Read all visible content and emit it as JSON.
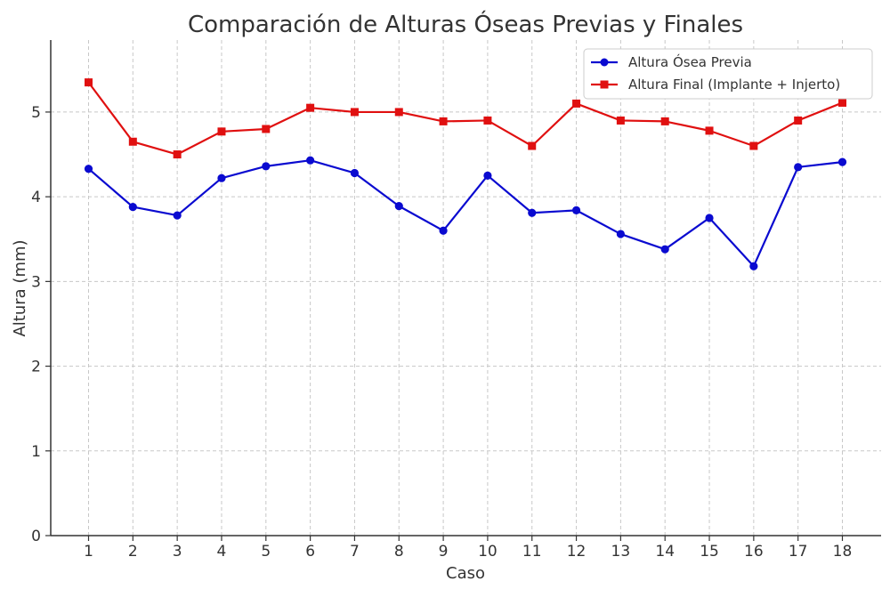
{
  "chart_data": {
    "type": "line",
    "title": "Comparación de Alturas Óseas Previas y Finales",
    "xlabel": "Caso",
    "ylabel": "Altura (mm)",
    "categories": [
      "1",
      "2",
      "3",
      "4",
      "5",
      "6",
      "7",
      "8",
      "9",
      "10",
      "11",
      "12",
      "13",
      "14",
      "15",
      "16",
      "17",
      "18"
    ],
    "ylim": [
      0,
      5.85
    ],
    "yticks": [
      "0",
      "1",
      "2",
      "3",
      "4",
      "5"
    ],
    "grid": true,
    "legend_position": "top-right",
    "series": [
      {
        "name": "Altura Ósea Previa",
        "color": "#0a0ad0",
        "marker": "circle",
        "values": [
          4.33,
          3.88,
          3.78,
          4.22,
          4.36,
          4.43,
          4.28,
          3.89,
          3.6,
          4.25,
          3.81,
          3.84,
          3.56,
          3.38,
          3.75,
          3.18,
          4.35,
          4.41
        ]
      },
      {
        "name": "Altura Final (Implante + Injerto)",
        "color": "#e01010",
        "marker": "square",
        "values": [
          5.35,
          4.65,
          4.5,
          4.77,
          4.8,
          5.05,
          5.0,
          5.0,
          4.89,
          4.9,
          4.6,
          5.1,
          4.9,
          4.89,
          4.78,
          4.6,
          4.9,
          5.11
        ]
      }
    ]
  }
}
